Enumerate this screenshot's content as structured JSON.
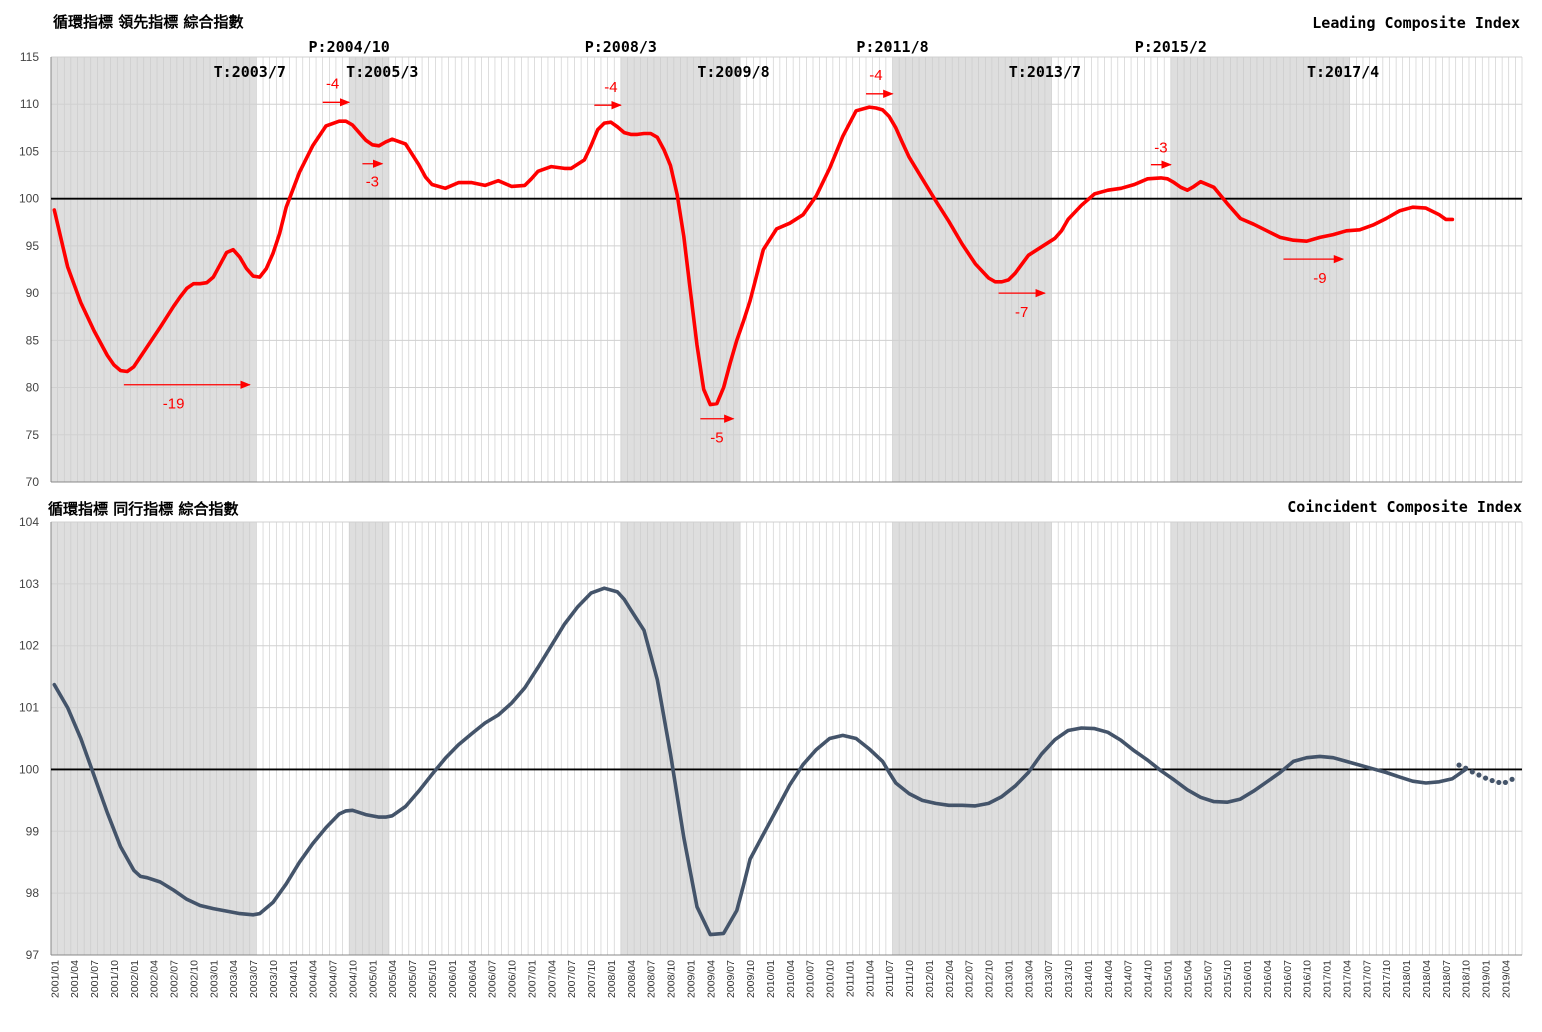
{
  "leading": {
    "title_ja": "循環指標 領先指標 綜合指數",
    "title_en": "Leading Composite Index",
    "ylim": [
      70,
      115
    ],
    "yticks": [
      70,
      75,
      80,
      85,
      90,
      95,
      100,
      105,
      110,
      115
    ],
    "baseline": 100,
    "line_color": "#ff0000"
  },
  "coincident": {
    "title_ja": "循環指標 同行指標 綜合指數",
    "title_en": "Coincident Composite Index",
    "ylim": [
      97,
      104
    ],
    "yticks": [
      97,
      98,
      99,
      100,
      101,
      102,
      103,
      104
    ],
    "baseline": 100,
    "line_color": "#44546a"
  },
  "recession_shading": [
    {
      "from": "2001/01",
      "to": "2003/07"
    },
    {
      "from": "2004/10",
      "to": "2005/03"
    },
    {
      "from": "2008/03",
      "to": "2009/08"
    },
    {
      "from": "2011/08",
      "to": "2013/07"
    },
    {
      "from": "2015/02",
      "to": "2017/04"
    }
  ],
  "turning_points": [
    {
      "label": "T:2003/7",
      "date": "2003/07",
      "row": "low"
    },
    {
      "label": "P:2004/10",
      "date": "2004/10",
      "row": "high"
    },
    {
      "label": "T:2005/3",
      "date": "2005/03",
      "row": "low"
    },
    {
      "label": "P:2008/3",
      "date": "2008/03",
      "row": "high"
    },
    {
      "label": "T:2009/8",
      "date": "2009/08",
      "row": "low"
    },
    {
      "label": "P:2011/8",
      "date": "2011/08",
      "row": "high"
    },
    {
      "label": "T:2013/7",
      "date": "2013/07",
      "row": "low"
    },
    {
      "label": "P:2015/2",
      "date": "2015/02",
      "row": "high"
    },
    {
      "label": "T:2017/4",
      "date": "2017/04",
      "row": "low"
    }
  ],
  "lead_annotations": [
    {
      "label": "-19",
      "from": "2001/12",
      "to": "2003/07",
      "arrow_y": 80.3,
      "label_y": 78.3,
      "label_date": "2002/07"
    },
    {
      "label": "-4",
      "from": "2004/06",
      "to": "2004/10",
      "arrow_y": 110.2,
      "label_y": 112.2,
      "label_date": "2004/07"
    },
    {
      "label": "-3",
      "from": "2004/12",
      "to": "2005/03",
      "arrow_y": 103.7,
      "label_y": 101.8,
      "label_date": "2005/01"
    },
    {
      "label": "-4",
      "from": "2007/11",
      "to": "2008/03",
      "arrow_y": 109.9,
      "label_y": 111.8,
      "label_date": "2008/01"
    },
    {
      "label": "-5",
      "from": "2009/03",
      "to": "2009/08",
      "arrow_y": 76.7,
      "label_y": 74.7,
      "label_date": "2009/05"
    },
    {
      "label": "-4",
      "from": "2011/04",
      "to": "2011/08",
      "arrow_y": 111.1,
      "label_y": 113.1,
      "label_date": "2011/05"
    },
    {
      "label": "-7",
      "from": "2012/12",
      "to": "2013/07",
      "arrow_y": 90.0,
      "label_y": 88.0,
      "label_date": "2013/03"
    },
    {
      "label": "-3",
      "from": "2014/11",
      "to": "2015/02",
      "arrow_y": 103.6,
      "label_y": 105.4,
      "label_date": "2014/12"
    },
    {
      "label": "-9",
      "from": "2016/07",
      "to": "2017/04",
      "arrow_y": 93.6,
      "label_y": 91.6,
      "label_date": "2016/12"
    }
  ],
  "chart_data": [
    {
      "type": "line",
      "title": "Leading Composite Index",
      "ylim": [
        70,
        115
      ],
      "series": [
        {
          "name": "",
          "x": [
            "2001/01",
            "2001/03",
            "2001/05",
            "2001/07",
            "2001/09",
            "2001/10",
            "2001/11",
            "2001/12",
            "2002/01",
            "2002/03",
            "2002/05",
            "2002/07",
            "2002/08",
            "2002/09",
            "2002/10",
            "2002/11",
            "2002/12",
            "2003/01",
            "2003/02",
            "2003/03",
            "2003/04",
            "2003/05",
            "2003/06",
            "2003/07",
            "2003/08",
            "2003/09",
            "2003/10",
            "2003/11",
            "2003/12",
            "2004/02",
            "2004/04",
            "2004/06",
            "2004/08",
            "2004/09",
            "2004/10",
            "2004/11",
            "2004/12",
            "2005/01",
            "2005/02",
            "2005/03",
            "2005/04",
            "2005/06",
            "2005/08",
            "2005/09",
            "2005/10",
            "2005/12",
            "2006/02",
            "2006/04",
            "2006/06",
            "2006/08",
            "2006/10",
            "2006/12",
            "2007/01",
            "2007/02",
            "2007/04",
            "2007/05",
            "2007/06",
            "2007/07",
            "2007/09",
            "2007/10",
            "2007/11",
            "2007/12",
            "2008/01",
            "2008/02",
            "2008/03",
            "2008/04",
            "2008/05",
            "2008/06",
            "2008/07",
            "2008/08",
            "2008/09",
            "2008/10",
            "2008/11",
            "2008/12",
            "2009/01",
            "2009/02",
            "2009/03",
            "2009/04",
            "2009/05",
            "2009/06",
            "2009/07",
            "2009/08",
            "2009/09",
            "2009/10",
            "2009/11",
            "2009/12",
            "2010/02",
            "2010/04",
            "2010/06",
            "2010/08",
            "2010/10",
            "2010/12",
            "2011/02",
            "2011/04",
            "2011/05",
            "2011/06",
            "2011/07",
            "2011/08",
            "2011/09",
            "2011/10",
            "2011/12",
            "2012/02",
            "2012/04",
            "2012/06",
            "2012/08",
            "2012/10",
            "2012/11",
            "2012/12",
            "2013/01",
            "2013/02",
            "2013/04",
            "2013/06",
            "2013/08",
            "2013/09",
            "2013/10",
            "2013/12",
            "2014/02",
            "2014/04",
            "2014/06",
            "2014/08",
            "2014/10",
            "2014/12",
            "2015/01",
            "2015/02",
            "2015/03",
            "2015/04",
            "2015/05",
            "2015/06",
            "2015/08",
            "2015/10",
            "2015/12",
            "2016/02",
            "2016/04",
            "2016/06",
            "2016/08",
            "2016/10",
            "2016/12",
            "2017/02",
            "2017/04",
            "2017/06",
            "2017/08",
            "2017/10",
            "2017/12",
            "2018/02",
            "2018/04",
            "2018/06",
            "2018/07",
            "2018/08"
          ],
          "values": [
            98.8,
            92.8,
            89.0,
            86.0,
            83.4,
            82.4,
            81.8,
            81.7,
            82.2,
            84.3,
            86.4,
            88.6,
            89.6,
            90.5,
            91.0,
            91.0,
            91.1,
            91.7,
            93.0,
            94.3,
            94.6,
            93.8,
            92.6,
            91.8,
            91.7,
            92.6,
            94.2,
            96.3,
            99.1,
            102.8,
            105.6,
            107.7,
            108.2,
            108.2,
            107.8,
            107.0,
            106.2,
            105.7,
            105.6,
            106.0,
            106.3,
            105.8,
            103.6,
            102.3,
            101.5,
            101.1,
            101.7,
            101.7,
            101.4,
            101.9,
            101.3,
            101.4,
            102.1,
            102.9,
            103.4,
            103.3,
            103.2,
            103.2,
            104.1,
            105.6,
            107.3,
            108.0,
            108.1,
            107.6,
            107.0,
            106.8,
            106.8,
            106.9,
            106.9,
            106.5,
            105.2,
            103.5,
            100.4,
            96.0,
            90.2,
            84.5,
            79.8,
            78.2,
            78.3,
            80.0,
            82.6,
            85.0,
            87.0,
            89.2,
            91.9,
            94.6,
            96.8,
            97.4,
            98.3,
            100.3,
            103.2,
            106.6,
            109.3,
            109.7,
            109.6,
            109.4,
            108.7,
            107.5,
            105.9,
            104.4,
            102.1,
            99.8,
            97.6,
            95.2,
            93.1,
            91.6,
            91.2,
            91.2,
            91.4,
            92.1,
            94.0,
            94.9,
            95.8,
            96.6,
            97.8,
            99.3,
            100.5,
            100.9,
            101.1,
            101.5,
            102.1,
            102.2,
            102.1,
            101.7,
            101.2,
            100.9,
            101.3,
            101.8,
            101.2,
            99.5,
            97.9,
            97.3,
            96.6,
            95.9,
            95.6,
            95.5,
            95.9,
            96.2,
            96.6,
            96.7,
            97.2,
            97.9,
            98.7,
            99.1,
            99.0,
            98.3,
            97.8,
            97.8
          ]
        }
      ]
    },
    {
      "type": "line",
      "title": "Coincident Composite Index",
      "ylim": [
        97,
        104
      ],
      "series": [
        {
          "name": "",
          "style": "solid",
          "x": [
            "2001/01",
            "2001/03",
            "2001/05",
            "2001/07",
            "2001/09",
            "2001/11",
            "2002/01",
            "2002/02",
            "2002/03",
            "2002/05",
            "2002/07",
            "2002/09",
            "2002/11",
            "2003/01",
            "2003/03",
            "2003/05",
            "2003/07",
            "2003/08",
            "2003/10",
            "2003/12",
            "2004/02",
            "2004/04",
            "2004/06",
            "2004/08",
            "2004/09",
            "2004/10",
            "2004/12",
            "2005/02",
            "2005/03",
            "2005/04",
            "2005/06",
            "2005/08",
            "2005/10",
            "2005/12",
            "2006/02",
            "2006/04",
            "2006/06",
            "2006/08",
            "2006/10",
            "2006/12",
            "2007/02",
            "2007/04",
            "2007/06",
            "2007/08",
            "2007/10",
            "2007/12",
            "2008/02",
            "2008/03",
            "2008/04",
            "2008/06",
            "2008/08",
            "2008/10",
            "2008/12",
            "2009/02",
            "2009/04",
            "2009/06",
            "2009/08",
            "2009/09",
            "2009/10",
            "2009/12",
            "2010/02",
            "2010/04",
            "2010/06",
            "2010/08",
            "2010/10",
            "2010/12",
            "2011/02",
            "2011/04",
            "2011/06",
            "2011/07",
            "2011/08",
            "2011/10",
            "2011/12",
            "2012/02",
            "2012/04",
            "2012/06",
            "2012/08",
            "2012/10",
            "2012/12",
            "2013/02",
            "2013/04",
            "2013/06",
            "2013/08",
            "2013/10",
            "2013/12",
            "2014/02",
            "2014/04",
            "2014/06",
            "2014/08",
            "2014/10",
            "2014/12",
            "2015/02",
            "2015/04",
            "2015/06",
            "2015/08",
            "2015/10",
            "2015/12",
            "2016/02",
            "2016/04",
            "2016/06",
            "2016/08",
            "2016/10",
            "2016/12",
            "2017/02",
            "2017/04",
            "2017/06",
            "2017/08",
            "2017/10",
            "2017/12",
            "2018/02",
            "2018/04",
            "2018/06",
            "2018/08",
            "2018/10"
          ],
          "values": [
            101.37,
            101.0,
            100.5,
            99.9,
            99.3,
            98.75,
            98.37,
            98.27,
            98.25,
            98.18,
            98.05,
            97.9,
            97.8,
            97.75,
            97.71,
            97.67,
            97.65,
            97.67,
            97.85,
            98.15,
            98.5,
            98.8,
            99.06,
            99.28,
            99.33,
            99.34,
            99.27,
            99.23,
            99.23,
            99.25,
            99.4,
            99.65,
            99.92,
            100.18,
            100.4,
            100.58,
            100.75,
            100.88,
            101.07,
            101.32,
            101.65,
            102.0,
            102.35,
            102.63,
            102.85,
            102.93,
            102.87,
            102.75,
            102.58,
            102.25,
            101.45,
            100.25,
            98.9,
            97.78,
            97.33,
            97.35,
            97.72,
            98.12,
            98.55,
            98.95,
            99.35,
            99.75,
            100.08,
            100.32,
            100.5,
            100.55,
            100.5,
            100.33,
            100.13,
            99.95,
            99.78,
            99.61,
            99.5,
            99.45,
            99.42,
            99.42,
            99.41,
            99.45,
            99.56,
            99.73,
            99.95,
            100.25,
            100.48,
            100.63,
            100.67,
            100.66,
            100.6,
            100.47,
            100.3,
            100.15,
            99.98,
            99.83,
            99.67,
            99.55,
            99.48,
            99.47,
            99.52,
            99.65,
            99.8,
            99.95,
            100.13,
            100.19,
            100.21,
            100.19,
            100.13,
            100.07,
            100.01,
            99.95,
            99.88,
            99.81,
            99.78,
            99.8,
            99.85,
            100.0
          ]
        },
        {
          "name": "",
          "style": "dotted",
          "x": [
            "2018/09",
            "2018/10",
            "2018/11",
            "2018/12",
            "2019/01",
            "2019/02",
            "2019/03",
            "2019/04",
            "2019/05"
          ],
          "values": [
            100.07,
            100.02,
            99.96,
            99.91,
            99.86,
            99.82,
            99.79,
            99.79,
            99.84
          ]
        }
      ]
    }
  ]
}
